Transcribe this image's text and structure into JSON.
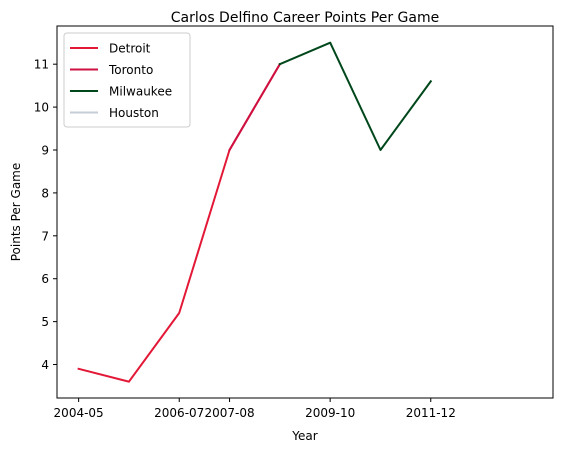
{
  "chart_data": {
    "type": "line",
    "title": "Carlos Delfino Career Points Per Game",
    "xlabel": "Year",
    "ylabel": "Points Per Game",
    "x_tick_labels": [
      "2004-05",
      "2006-07",
      "2007-08",
      "2009-10",
      "2011-12"
    ],
    "x_tick_index": [
      0,
      2,
      3,
      5,
      7
    ],
    "y_ticks": [
      4,
      5,
      6,
      7,
      8,
      9,
      10,
      11
    ],
    "ylim": [
      3.22,
      11.89
    ],
    "xlim": [
      -0.43,
      9.43
    ],
    "grid": false,
    "legend_position": "top-left",
    "series": [
      {
        "name": "Detroit",
        "color": "#E31837",
        "points": [
          [
            0,
            3.9
          ],
          [
            1,
            3.6
          ],
          [
            2,
            5.2
          ],
          [
            3,
            9.0
          ],
          [
            4,
            11.0
          ]
        ]
      },
      {
        "name": "Toronto",
        "color": "#CE1141",
        "points": [
          [
            3,
            9.0
          ],
          [
            4,
            11.0
          ]
        ]
      },
      {
        "name": "Milwaukee",
        "color": "#00471B",
        "points": [
          [
            4,
            11.0
          ],
          [
            5,
            11.5
          ],
          [
            6,
            9.0
          ],
          [
            7,
            10.6
          ]
        ]
      },
      {
        "name": "Houston",
        "color": "#C4CED4",
        "points": []
      }
    ]
  }
}
